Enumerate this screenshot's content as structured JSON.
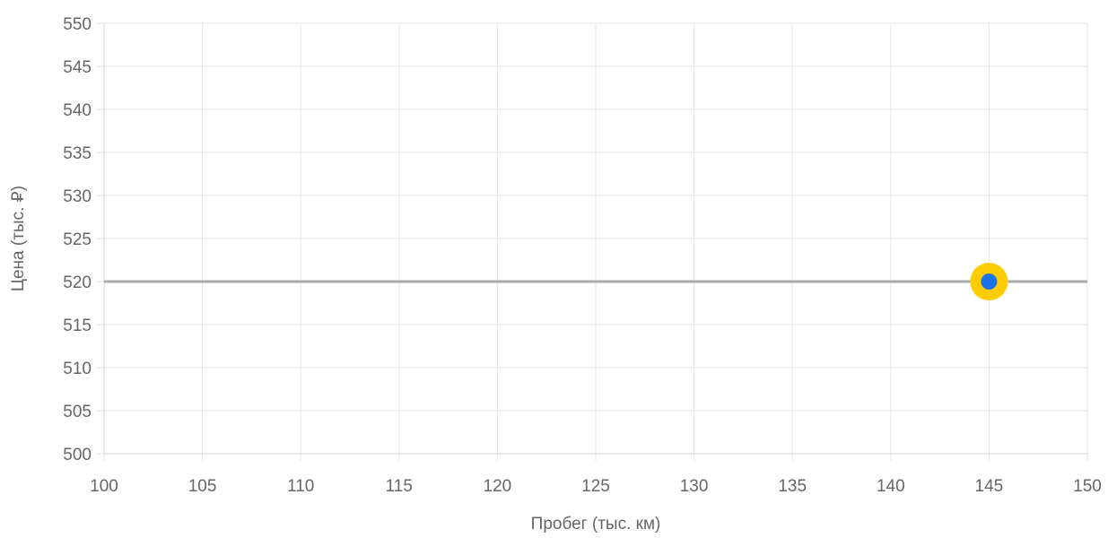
{
  "chart_data": {
    "type": "scatter",
    "title": "",
    "xlabel": "Пробег (тыс. км)",
    "ylabel": "Цена (тыс. ₽)",
    "xlim": [
      100,
      150
    ],
    "ylim": [
      500,
      550
    ],
    "xticks": [
      100,
      105,
      110,
      115,
      120,
      125,
      130,
      135,
      140,
      145,
      150
    ],
    "yticks": [
      500,
      505,
      510,
      515,
      520,
      525,
      530,
      535,
      540,
      545,
      550
    ],
    "grid": true,
    "legend": "none",
    "reference_line": {
      "y": 520,
      "color": "#aaaaaa"
    },
    "series": [
      {
        "points": [
          {
            "x": 145,
            "y": 520
          }
        ],
        "color": "#1a73e8",
        "highlight_color": "#ffcc00"
      }
    ]
  }
}
